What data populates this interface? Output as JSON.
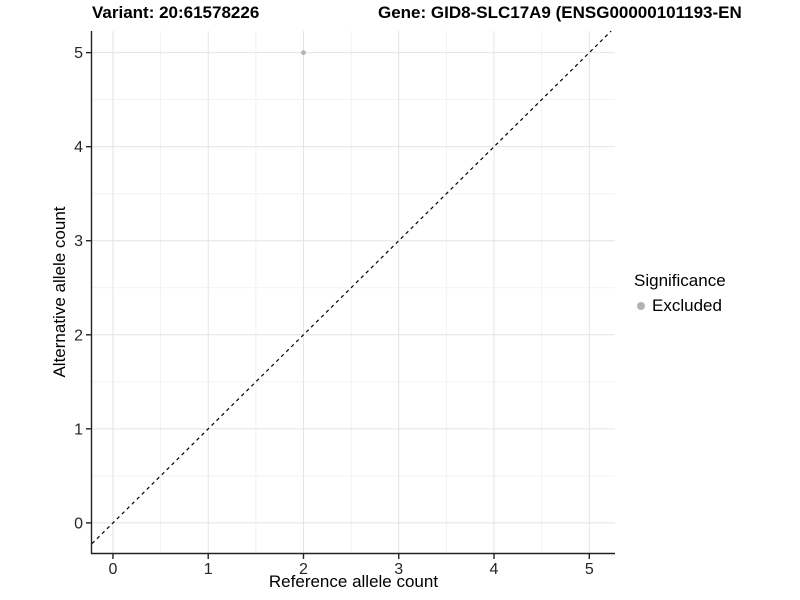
{
  "figure": {
    "title_left": "Variant: 20:61578226",
    "title_right": "Gene: GID8-SLC17A9 (ENSG00000101193-EN"
  },
  "chart_data": {
    "type": "scatter",
    "xlabel": "Reference allele count",
    "ylabel": "Alternative allele count",
    "x_ticks": [
      0,
      1,
      2,
      3,
      4,
      5
    ],
    "y_ticks": [
      0,
      1,
      2,
      3,
      4,
      5
    ],
    "xlim": [
      -0.22,
      5.27
    ],
    "ylim": [
      -0.32,
      5.23
    ],
    "grid": true,
    "minor_grid_step": 0.5,
    "points": [
      {
        "x": 2,
        "y": 5,
        "series": "Excluded"
      }
    ],
    "reference_line": {
      "type": "identity",
      "equation": "y = x",
      "dashed": true
    },
    "legend": {
      "position": "right",
      "title": "Significance",
      "entries": [
        {
          "label": "Excluded",
          "color": "#b3b3b3",
          "marker": "circle"
        }
      ]
    },
    "colors": {
      "point": "#b3b3b3",
      "grid_major": "#e4e4e4",
      "grid_minor": "#f2f2f2",
      "axis": "#222222",
      "tick_label": "#262626",
      "dashed_line": "#000000"
    }
  }
}
